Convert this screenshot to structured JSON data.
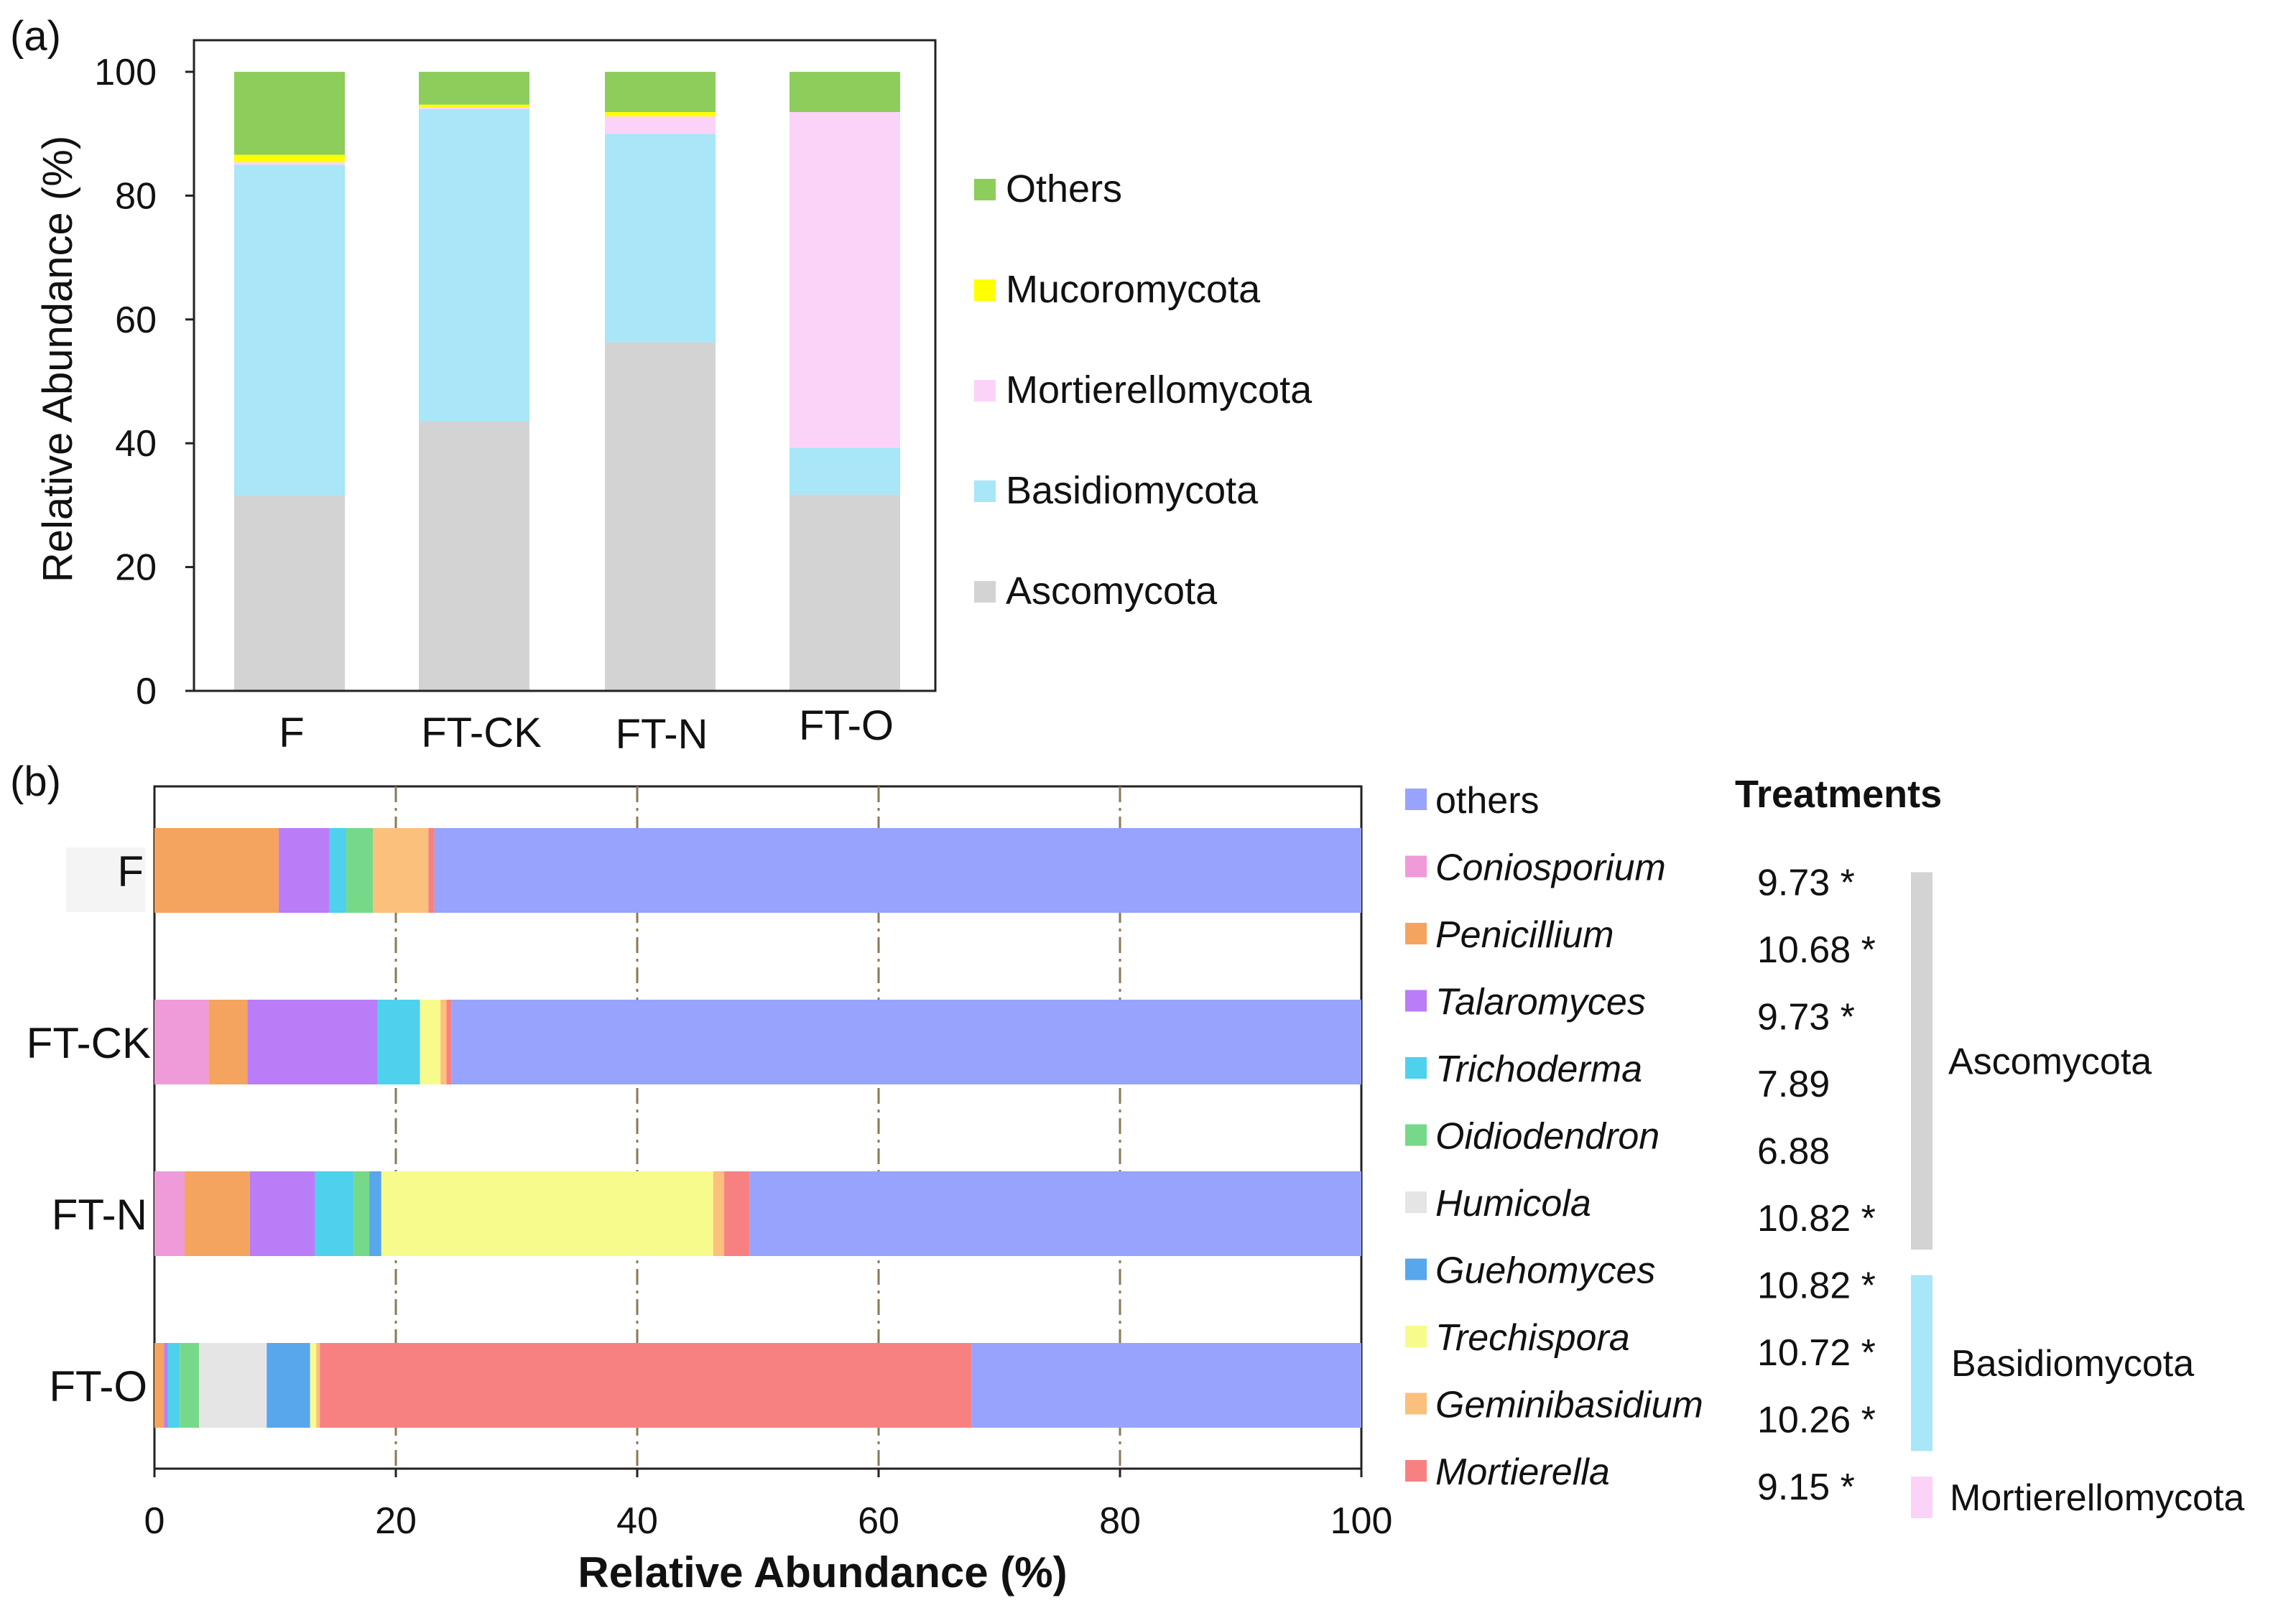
{
  "figure": {
    "panel_a_label": "(a)",
    "panel_b_label": "(b)"
  },
  "colors": {
    "Ascomycota": "#d3d3d3",
    "Basidiomycota": "#a8e6f8",
    "Mortierellomycota": "#fcd3f8",
    "Mucoromycota": "#ffff00",
    "Others_phylum": "#8ccd5c",
    "others": "#97a3fc",
    "Coniosporium": "#ef9bd9",
    "Penicillium": "#f4a45e",
    "Talaromyces": "#bb7cf7",
    "Trichoderma": "#4dd1ec",
    "Oidiodendron": "#76d989",
    "Humicola": "#e5e5e5",
    "Guehomyces": "#58a7ec",
    "Trechispora": "#f7fb8c",
    "Geminibasidium": "#fbc07c",
    "Mortierella": "#f78181"
  },
  "chart_data": [
    {
      "id": "a",
      "type": "bar",
      "stacked": true,
      "orientation": "vertical",
      "title": "",
      "xlabel": "",
      "ylabel": "Relative Abundance (%)",
      "ylim": [
        0,
        100
      ],
      "yticks": [
        "0",
        "20",
        "40",
        "60",
        "80",
        "100"
      ],
      "categories": [
        "F",
        "FT-CK",
        "FT-N",
        "FT-O"
      ],
      "series": [
        {
          "name": "Ascomycota",
          "values": [
            31.5,
            43.5,
            56.3,
            31.7
          ]
        },
        {
          "name": "Basidiomycota",
          "values": [
            53.5,
            50.5,
            33.7,
            7.6
          ]
        },
        {
          "name": "Mortierellomycota",
          "values": [
            0.4,
            0.2,
            2.8,
            54.2
          ]
        },
        {
          "name": "Mucoromycota",
          "values": [
            1.2,
            0.5,
            0.7,
            0.0
          ]
        },
        {
          "name": "Others",
          "values": [
            13.4,
            5.3,
            6.5,
            6.5
          ]
        }
      ],
      "legend_order": [
        "Others",
        "Mucoromycota",
        "Mortierellomycota",
        "Basidiomycota",
        "Ascomycota"
      ],
      "legend_position": "right",
      "grid": false
    },
    {
      "id": "b",
      "type": "bar",
      "stacked": true,
      "orientation": "horizontal",
      "title": "",
      "xlabel": "Relative Abundance (%)",
      "ylabel": "",
      "xlim": [
        0,
        100
      ],
      "xticks": [
        "0",
        "20",
        "40",
        "60",
        "80",
        "100"
      ],
      "categories": [
        "F",
        "FT-CK",
        "FT-N",
        "FT-O"
      ],
      "series": [
        {
          "name": "Coniosporium",
          "values": [
            0.0,
            4.5,
            2.5,
            0.0
          ]
        },
        {
          "name": "Penicillium",
          "values": [
            10.3,
            3.2,
            5.4,
            0.8
          ]
        },
        {
          "name": "Talaromyces",
          "values": [
            4.2,
            10.8,
            5.4,
            0.3
          ]
        },
        {
          "name": "Trichoderma",
          "values": [
            1.4,
            3.5,
            3.2,
            1.0
          ]
        },
        {
          "name": "Oidiodendron",
          "values": [
            2.2,
            0.0,
            1.3,
            1.6
          ]
        },
        {
          "name": "Humicola",
          "values": [
            0.0,
            0.0,
            0.0,
            5.6
          ]
        },
        {
          "name": "Guehomyces",
          "values": [
            0.0,
            0.0,
            1.0,
            3.6
          ]
        },
        {
          "name": "Trechispora",
          "values": [
            0.0,
            1.7,
            27.5,
            0.5
          ]
        },
        {
          "name": "Geminibasidium",
          "values": [
            4.6,
            0.5,
            0.9,
            0.3
          ]
        },
        {
          "name": "Mortierella",
          "values": [
            0.5,
            0.4,
            2.1,
            54.0
          ]
        },
        {
          "name": "others",
          "values": [
            76.8,
            75.4,
            50.7,
            32.3
          ]
        }
      ],
      "vertical_gridlines_at": [
        20,
        40,
        60,
        80
      ],
      "legend_position": "right",
      "legend_order": [
        "others",
        "Coniosporium",
        "Penicillium",
        "Talaromyces",
        "Trichoderma",
        "Oidiodendron",
        "Humicola",
        "Guehomyces",
        "Trechispora",
        "Geminibasidium",
        "Mortierella"
      ]
    }
  ],
  "treatments_table": {
    "header": "Treatments",
    "values": {
      "Coniosporium": "9.73 *",
      "Penicillium": "10.68 *",
      "Talaromyces": "9.73 *",
      "Trichoderma": "7.89",
      "Oidiodendron": "6.88",
      "Humicola": "10.82 *",
      "Guehomyces": "10.82 *",
      "Trechispora": "10.72 *",
      "Geminibasidium": "10.26 *",
      "Mortierella": "9.15 *"
    },
    "groups": [
      {
        "name": "Ascomycota",
        "members": [
          "Coniosporium",
          "Humicola"
        ]
      },
      {
        "name": "Basidiomycota",
        "members": [
          "Guehomyces",
          "Geminibasidium"
        ]
      },
      {
        "name": "Mortierellomycota",
        "members": [
          "Mortierella"
        ]
      }
    ]
  }
}
